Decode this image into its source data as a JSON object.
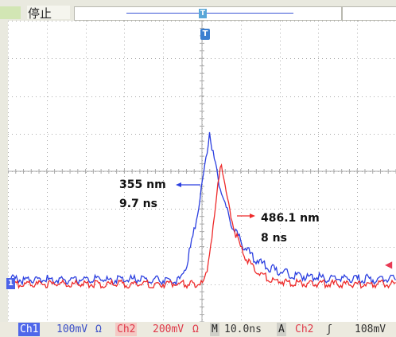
{
  "status": {
    "label": "停止"
  },
  "markers": {
    "trigger": "T",
    "ch1": "1"
  },
  "annotations": {
    "blue_wavelength": "355 nm",
    "blue_time": "9.7 ns",
    "red_wavelength": "486.1 nm",
    "red_time": "8 ns"
  },
  "bottom": {
    "ch1_label": "Ch1",
    "ch1_scale": "100mV",
    "ch1_coupling": "Ω",
    "ch2_label": "Ch2",
    "ch2_scale": "200mV",
    "ch2_coupling": "Ω",
    "timebase_label": "M",
    "timebase": "10.0ns",
    "trigger_mode": "A",
    "trigger_source": "Ch2",
    "trigger_slope": "ʃ",
    "trigger_level": "108mV"
  },
  "colors": {
    "ch1": "#2b3fe0",
    "ch2": "#ee2a2a",
    "grid": "#a9a9a9"
  }
}
